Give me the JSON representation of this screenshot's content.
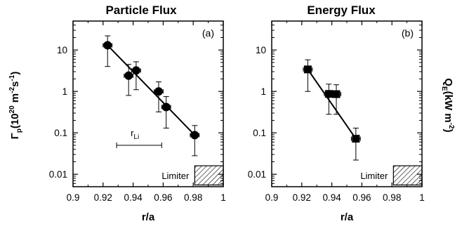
{
  "chart_data": [
    {
      "type": "scatter",
      "title": "Particle Flux",
      "panel_label": "(a)",
      "xlabel": "r/a",
      "ylabel_main": "Γ",
      "ylabel_sub": "p",
      "ylabel_units": "(10",
      "ylabel_units_exp": "20",
      "ylabel_units_mid": " m",
      "ylabel_units_exp2": "-2",
      "ylabel_units_end": "s",
      "ylabel_units_exp3": "-1",
      "ylabel_units_close": ")",
      "xlim": [
        0.9,
        1.0
      ],
      "ylim": [
        0.005,
        50
      ],
      "log_y": true,
      "x_ticks": [
        "0.9",
        "0.92",
        "0.94",
        "0.96",
        "0.98",
        "1"
      ],
      "y_ticks": [
        "0.01",
        "0.1",
        "1",
        "10"
      ],
      "marker": "circle",
      "points": [
        {
          "x": 0.923,
          "y": 13,
          "xerr": 0.003,
          "ylo": 4,
          "yhi": 22
        },
        {
          "x": 0.937,
          "y": 2.4,
          "xerr": 0.003,
          "ylo": 0.8,
          "yhi": 4.5
        },
        {
          "x": 0.942,
          "y": 3.2,
          "xerr": 0.003,
          "ylo": 1.1,
          "yhi": 5.2
        },
        {
          "x": 0.957,
          "y": 1.0,
          "xerr": 0.003,
          "ylo": 0.32,
          "yhi": 1.7
        },
        {
          "x": 0.962,
          "y": 0.42,
          "xerr": 0.003,
          "ylo": 0.13,
          "yhi": 0.75
        },
        {
          "x": 0.981,
          "y": 0.088,
          "xerr": 0.003,
          "ylo": 0.028,
          "yhi": 0.15
        }
      ],
      "fit_line": [
        {
          "x": 0.923,
          "y": 13
        },
        {
          "x": 0.981,
          "y": 0.088
        }
      ],
      "rli_label": "r",
      "rli_sub": "Li",
      "rli_bar": {
        "x1": 0.929,
        "x2": 0.959,
        "y": 0.05
      },
      "limiter_label": "Limiter",
      "limiter": {
        "x1": 0.981,
        "x2": 1.0,
        "ylo": 0.0055,
        "yhi": 0.016
      }
    },
    {
      "type": "scatter",
      "title": "Energy Flux",
      "panel_label": "(b)",
      "xlabel": "r/a",
      "ylabel_main": "Q",
      "ylabel_sub": "E",
      "ylabel_units": "(kW m",
      "ylabel_units_exp": "-2",
      "ylabel_units_close": ")",
      "xlim": [
        0.9,
        1.0
      ],
      "ylim": [
        0.005,
        50
      ],
      "log_y": true,
      "x_ticks": [
        "0.9",
        "0.92",
        "0.94",
        "0.96",
        "0.98",
        "1"
      ],
      "y_ticks": [
        "0.01",
        "0.1",
        "1",
        "10"
      ],
      "marker": "square",
      "points": [
        {
          "x": 0.924,
          "y": 3.4,
          "xerr": 0.003,
          "ylo": 1.0,
          "yhi": 5.8
        },
        {
          "x": 0.938,
          "y": 0.87,
          "xerr": 0.003,
          "ylo": 0.28,
          "yhi": 1.5
        },
        {
          "x": 0.943,
          "y": 0.86,
          "xerr": 0.003,
          "ylo": 0.28,
          "yhi": 1.45
        },
        {
          "x": 0.956,
          "y": 0.072,
          "xerr": 0.003,
          "ylo": 0.022,
          "yhi": 0.13
        }
      ],
      "fit_line": [
        {
          "x": 0.924,
          "y": 3.4
        },
        {
          "x": 0.956,
          "y": 0.072
        }
      ],
      "limiter_label": "Limiter",
      "limiter": {
        "x1": 0.981,
        "x2": 1.0,
        "ylo": 0.0055,
        "yhi": 0.016
      }
    }
  ]
}
